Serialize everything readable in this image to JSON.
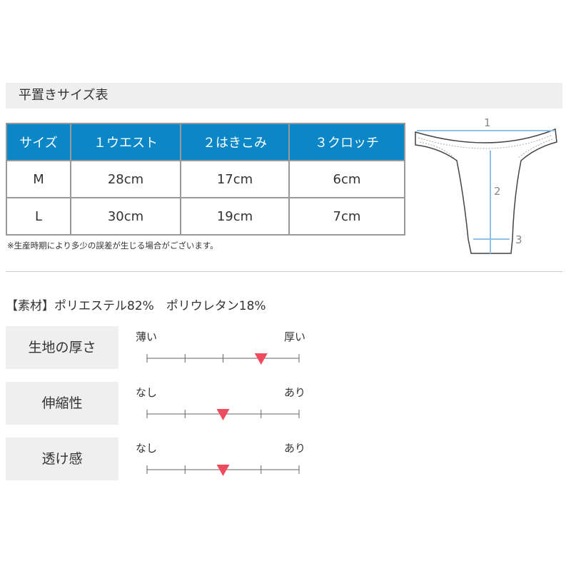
{
  "title": "平置きサイズ表",
  "table": {
    "headers": [
      "サイズ",
      "１ウエスト",
      "２はきこみ",
      "３クロッチ"
    ],
    "rows": [
      [
        "M",
        "28cm",
        "17cm",
        "6cm"
      ],
      [
        "L",
        "30cm",
        "19cm",
        "7cm"
      ]
    ]
  },
  "note": "※生産時期により多少の誤差が生じる場合がございます。",
  "diagram": {
    "labels": [
      "1",
      "2",
      "3"
    ],
    "arrow_color": "#8fc0e8"
  },
  "material": "【素材】ポリエステル82%　ポリウレタン18%",
  "ratings": [
    {
      "label": "生地の厚さ",
      "low": "薄い",
      "high": "厚い",
      "level": 3,
      "max": 4
    },
    {
      "label": "伸縮性",
      "low": "なし",
      "high": "あり",
      "level": 2,
      "max": 4
    },
    {
      "label": "透け感",
      "low": "なし",
      "high": "あり",
      "level": 2,
      "max": 4
    }
  ],
  "marker_color": "#ef4b5f"
}
